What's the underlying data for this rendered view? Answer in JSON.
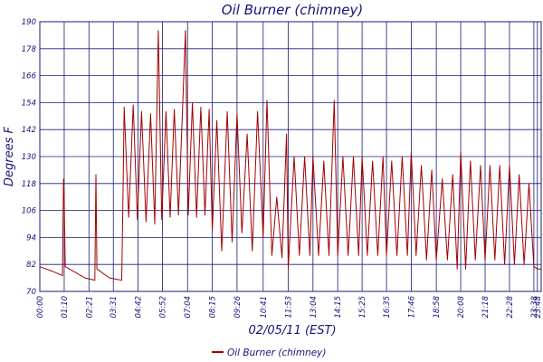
{
  "chart_data": {
    "type": "line",
    "title": "Oil Burner (chimney)",
    "xlabel": "02/05/11 (EST)",
    "ylabel": "Degrees F",
    "ylim": [
      70,
      190
    ],
    "yticks": [
      70,
      82,
      94,
      106,
      118,
      130,
      142,
      154,
      166,
      178,
      190
    ],
    "xlim": [
      "00:00",
      "23:59"
    ],
    "xticks": [
      "00:00",
      "01:10",
      "02:21",
      "03:31",
      "04:42",
      "05:52",
      "07:04",
      "08:15",
      "09:26",
      "10:41",
      "11:53",
      "13:04",
      "14:15",
      "15:25",
      "16:35",
      "17:46",
      "18:58",
      "20:08",
      "21:18",
      "22:28",
      "23:38",
      "23:48"
    ],
    "grid": true,
    "legend": "bottom",
    "colors": {
      "series": "#a30000",
      "grid": "#1a1a7a",
      "text": "#14147a"
    },
    "series": [
      {
        "name": "Oil Burner (chimney)",
        "points": [
          [
            "00:00",
            81
          ],
          [
            "00:35",
            79
          ],
          [
            "01:05",
            77
          ],
          [
            "01:08",
            120
          ],
          [
            "01:10",
            112
          ],
          [
            "01:13",
            81
          ],
          [
            "02:10",
            76
          ],
          [
            "02:38",
            75
          ],
          [
            "02:41",
            122
          ],
          [
            "02:44",
            80
          ],
          [
            "03:20",
            76
          ],
          [
            "03:55",
            75
          ],
          [
            "03:58",
            104
          ],
          [
            "04:02",
            152
          ],
          [
            "04:15",
            103
          ],
          [
            "04:28",
            153
          ],
          [
            "04:40",
            102
          ],
          [
            "04:52",
            150
          ],
          [
            "05:05",
            101
          ],
          [
            "05:18",
            149
          ],
          [
            "05:30",
            100
          ],
          [
            "05:40",
            186
          ],
          [
            "05:50",
            102
          ],
          [
            "06:02",
            150
          ],
          [
            "06:14",
            103
          ],
          [
            "06:26",
            151
          ],
          [
            "06:38",
            104
          ],
          [
            "06:50",
            152
          ],
          [
            "06:58",
            186
          ],
          [
            "07:06",
            104
          ],
          [
            "07:18",
            154
          ],
          [
            "07:30",
            103
          ],
          [
            "07:42",
            152
          ],
          [
            "07:54",
            104
          ],
          [
            "08:06",
            151
          ],
          [
            "08:15",
            97
          ],
          [
            "08:28",
            146
          ],
          [
            "08:42",
            88
          ],
          [
            "08:58",
            150
          ],
          [
            "09:12",
            92
          ],
          [
            "09:26",
            149
          ],
          [
            "09:40",
            96
          ],
          [
            "09:55",
            140
          ],
          [
            "10:10",
            88
          ],
          [
            "10:25",
            150
          ],
          [
            "10:41",
            94
          ],
          [
            "10:52",
            155
          ],
          [
            "11:06",
            86
          ],
          [
            "11:20",
            112
          ],
          [
            "11:35",
            85
          ],
          [
            "11:48",
            140
          ],
          [
            "11:53",
            80
          ],
          [
            "12:10",
            130
          ],
          [
            "12:25",
            86
          ],
          [
            "12:40",
            130
          ],
          [
            "12:55",
            86
          ],
          [
            "13:04",
            130
          ],
          [
            "13:20",
            86
          ],
          [
            "13:35",
            128
          ],
          [
            "13:50",
            86
          ],
          [
            "14:05",
            155
          ],
          [
            "14:15",
            86
          ],
          [
            "14:30",
            130
          ],
          [
            "14:45",
            86
          ],
          [
            "15:00",
            130
          ],
          [
            "15:15",
            86
          ],
          [
            "15:25",
            130
          ],
          [
            "15:40",
            86
          ],
          [
            "15:55",
            128
          ],
          [
            "16:10",
            86
          ],
          [
            "16:25",
            130
          ],
          [
            "16:35",
            86
          ],
          [
            "16:50",
            128
          ],
          [
            "17:05",
            86
          ],
          [
            "17:20",
            130
          ],
          [
            "17:35",
            86
          ],
          [
            "17:46",
            132
          ],
          [
            "18:00",
            86
          ],
          [
            "18:15",
            126
          ],
          [
            "18:30",
            84
          ],
          [
            "18:45",
            124
          ],
          [
            "18:58",
            84
          ],
          [
            "19:15",
            120
          ],
          [
            "19:30",
            84
          ],
          [
            "19:45",
            122
          ],
          [
            "19:58",
            80
          ],
          [
            "20:08",
            132
          ],
          [
            "20:22",
            80
          ],
          [
            "20:36",
            128
          ],
          [
            "20:50",
            84
          ],
          [
            "21:05",
            126
          ],
          [
            "21:18",
            84
          ],
          [
            "21:32",
            126
          ],
          [
            "21:46",
            84
          ],
          [
            "22:00",
            126
          ],
          [
            "22:14",
            82
          ],
          [
            "22:28",
            126
          ],
          [
            "22:42",
            82
          ],
          [
            "22:56",
            122
          ],
          [
            "23:10",
            82
          ],
          [
            "23:24",
            118
          ],
          [
            "23:38",
            81
          ],
          [
            "23:48",
            80
          ],
          [
            "23:59",
            80
          ]
        ]
      }
    ]
  }
}
